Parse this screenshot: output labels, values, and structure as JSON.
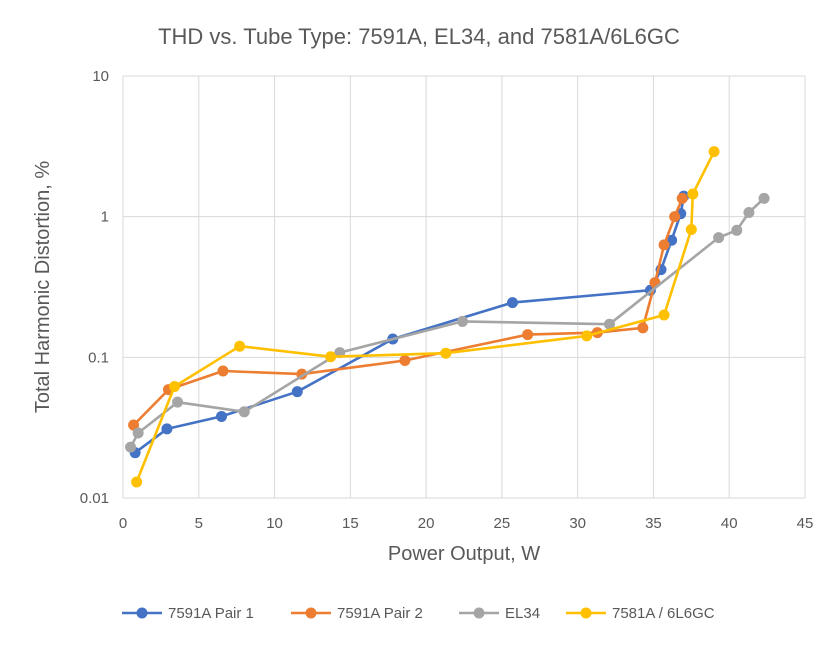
{
  "chart_data": {
    "type": "scatter",
    "title": "THD vs. Tube Type: 7591A, EL34, and 7581A/6L6GC",
    "xlabel": "Power Output, W",
    "ylabel": "Total Harmonic Distortion, %",
    "xlim": [
      0,
      45
    ],
    "ylim": [
      0.01,
      10
    ],
    "yscale": "log",
    "grid": true,
    "legend_position": "bottom",
    "x_ticks": [
      "0",
      "5",
      "10",
      "15",
      "20",
      "25",
      "30",
      "35",
      "40",
      "45"
    ],
    "y_ticks": [
      "0.01",
      "0.1",
      "1",
      "10"
    ],
    "series": [
      {
        "name": "7591A Pair 1",
        "color": "#4472C4",
        "x": [
          0.8,
          2.9,
          6.5,
          11.5,
          17.8,
          25.7,
          34.8,
          35.5,
          36.2,
          36.8,
          37.0
        ],
        "y": [
          0.021,
          0.031,
          0.038,
          0.057,
          0.135,
          0.245,
          0.3,
          0.42,
          0.68,
          1.05,
          1.4
        ]
      },
      {
        "name": "7591A Pair 2",
        "color": "#ED7D31",
        "x": [
          0.7,
          3.0,
          6.6,
          11.8,
          18.6,
          26.7,
          31.3,
          34.3,
          35.1,
          35.7,
          36.4,
          36.9
        ],
        "y": [
          0.033,
          0.059,
          0.08,
          0.076,
          0.095,
          0.145,
          0.15,
          0.162,
          0.34,
          0.63,
          1.0,
          1.35
        ]
      },
      {
        "name": "EL34",
        "color": "#A5A5A5",
        "x": [
          0.5,
          1.0,
          3.6,
          8.0,
          14.3,
          22.4,
          32.1,
          39.3,
          40.5,
          41.3,
          42.3
        ],
        "y": [
          0.023,
          0.029,
          0.048,
          0.041,
          0.108,
          0.18,
          0.172,
          0.71,
          0.8,
          1.07,
          1.35
        ]
      },
      {
        "name": "7581A / 6L6GC",
        "color": "#FFC000",
        "x": [
          0.9,
          3.4,
          7.7,
          13.7,
          21.3,
          30.6,
          35.7,
          37.5,
          37.6,
          39.0
        ],
        "y": [
          0.013,
          0.062,
          0.12,
          0.101,
          0.107,
          0.142,
          0.2,
          0.81,
          1.45,
          2.9
        ]
      }
    ]
  }
}
